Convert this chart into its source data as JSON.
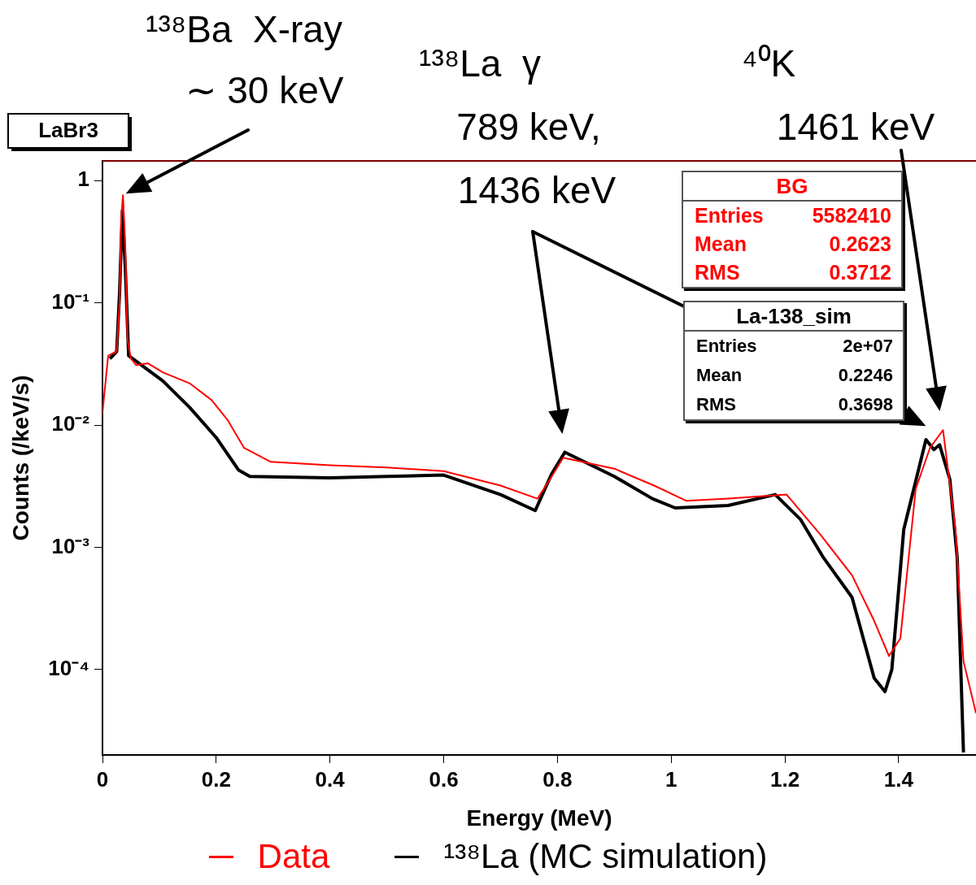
{
  "chart_data": {
    "type": "line",
    "title": "LaBr3",
    "xlabel": "Energy (MeV)",
    "ylabel": "Counts (/keV/s)",
    "xlim": [
      0,
      1.536
    ],
    "xticks": [
      0,
      0.2,
      0.4,
      0.6,
      0.8,
      1,
      1.2,
      1.4
    ],
    "ylim": [
      2e-05,
      1.45
    ],
    "yticks": [
      {
        "value": 0.0001,
        "label": "10⁻⁴"
      },
      {
        "value": 0.001,
        "label": "10⁻³"
      },
      {
        "value": 0.01,
        "label": "10⁻²"
      },
      {
        "value": 0.1,
        "label": "10⁻¹"
      },
      1
    ],
    "log": "y",
    "grid": false,
    "legend": "bottom",
    "marker": "none",
    "line_style": "solid",
    "series": [
      {
        "name": "Data",
        "color": "#ff0000",
        "x": [
          0,
          0.01,
          0.025,
          0.03,
          0.033,
          0.036,
          0.04,
          0.044,
          0.05,
          0.059,
          0.08,
          0.106,
          0.153,
          0.192,
          0.22,
          0.249,
          0.296,
          0.4,
          0.5,
          0.6,
          0.7,
          0.765,
          0.79,
          0.81,
          0.9,
          0.97,
          1.027,
          1.1,
          1.203,
          1.263,
          1.318,
          1.357,
          1.383,
          1.403,
          1.43,
          1.455,
          1.478,
          1.5,
          1.514,
          1.536
        ],
        "values": [
          0.0126,
          0.037,
          0.04,
          0.1,
          0.5,
          0.76,
          0.3,
          0.05,
          0.035,
          0.031,
          0.032,
          0.027,
          0.022,
          0.016,
          0.011,
          0.0065,
          0.005,
          0.0047,
          0.0045,
          0.0042,
          0.0032,
          0.0025,
          0.0038,
          0.0054,
          0.0044,
          0.0032,
          0.0024,
          0.0025,
          0.0027,
          0.00126,
          0.00059,
          0.00025,
          0.000129,
          0.00018,
          0.003,
          0.0065,
          0.0091,
          0.0014,
          0.000117,
          4.4e-05
        ]
      },
      {
        "name": "¹³⁸La (MC simulation)",
        "color": "#000000",
        "x": [
          0.013,
          0.025,
          0.03,
          0.035,
          0.04,
          0.046,
          0.106,
          0.153,
          0.2,
          0.239,
          0.259,
          0.4,
          0.5,
          0.6,
          0.7,
          0.761,
          0.79,
          0.813,
          0.9,
          0.967,
          1.007,
          1.1,
          1.183,
          1.227,
          1.268,
          1.318,
          1.357,
          1.376,
          1.388,
          1.409,
          1.448,
          1.462,
          1.472,
          1.49,
          1.503,
          1.514
        ],
        "values": [
          0.035,
          0.04,
          0.12,
          0.57,
          0.2,
          0.037,
          0.023,
          0.014,
          0.0079,
          0.0043,
          0.0038,
          0.0037,
          0.0038,
          0.0039,
          0.0027,
          0.002,
          0.004,
          0.006,
          0.0038,
          0.0025,
          0.0021,
          0.0022,
          0.0027,
          0.0017,
          0.00082,
          0.00039,
          8.5e-05,
          6.6e-05,
          0.0001,
          0.0014,
          0.0076,
          0.0063,
          0.0069,
          0.0036,
          0.00082,
          2.1e-05
        ]
      }
    ],
    "annotations": [
      {
        "text": "¹³⁸Ba  X-ray\n∼ 30 keV",
        "x": 0.036,
        "y": 0.76
      },
      "¹³⁸La  γ\n789 keV,",
      "1436 keV",
      "⁴⁰K\n1461 keV",
      "BG",
      "Entries 5582410",
      "Mean 0.2623",
      "RMS 0.3712",
      "La-138_sim",
      "Entries 2e+07",
      "Mean 0.2246",
      "RMS 0.3698"
    ]
  }
}
